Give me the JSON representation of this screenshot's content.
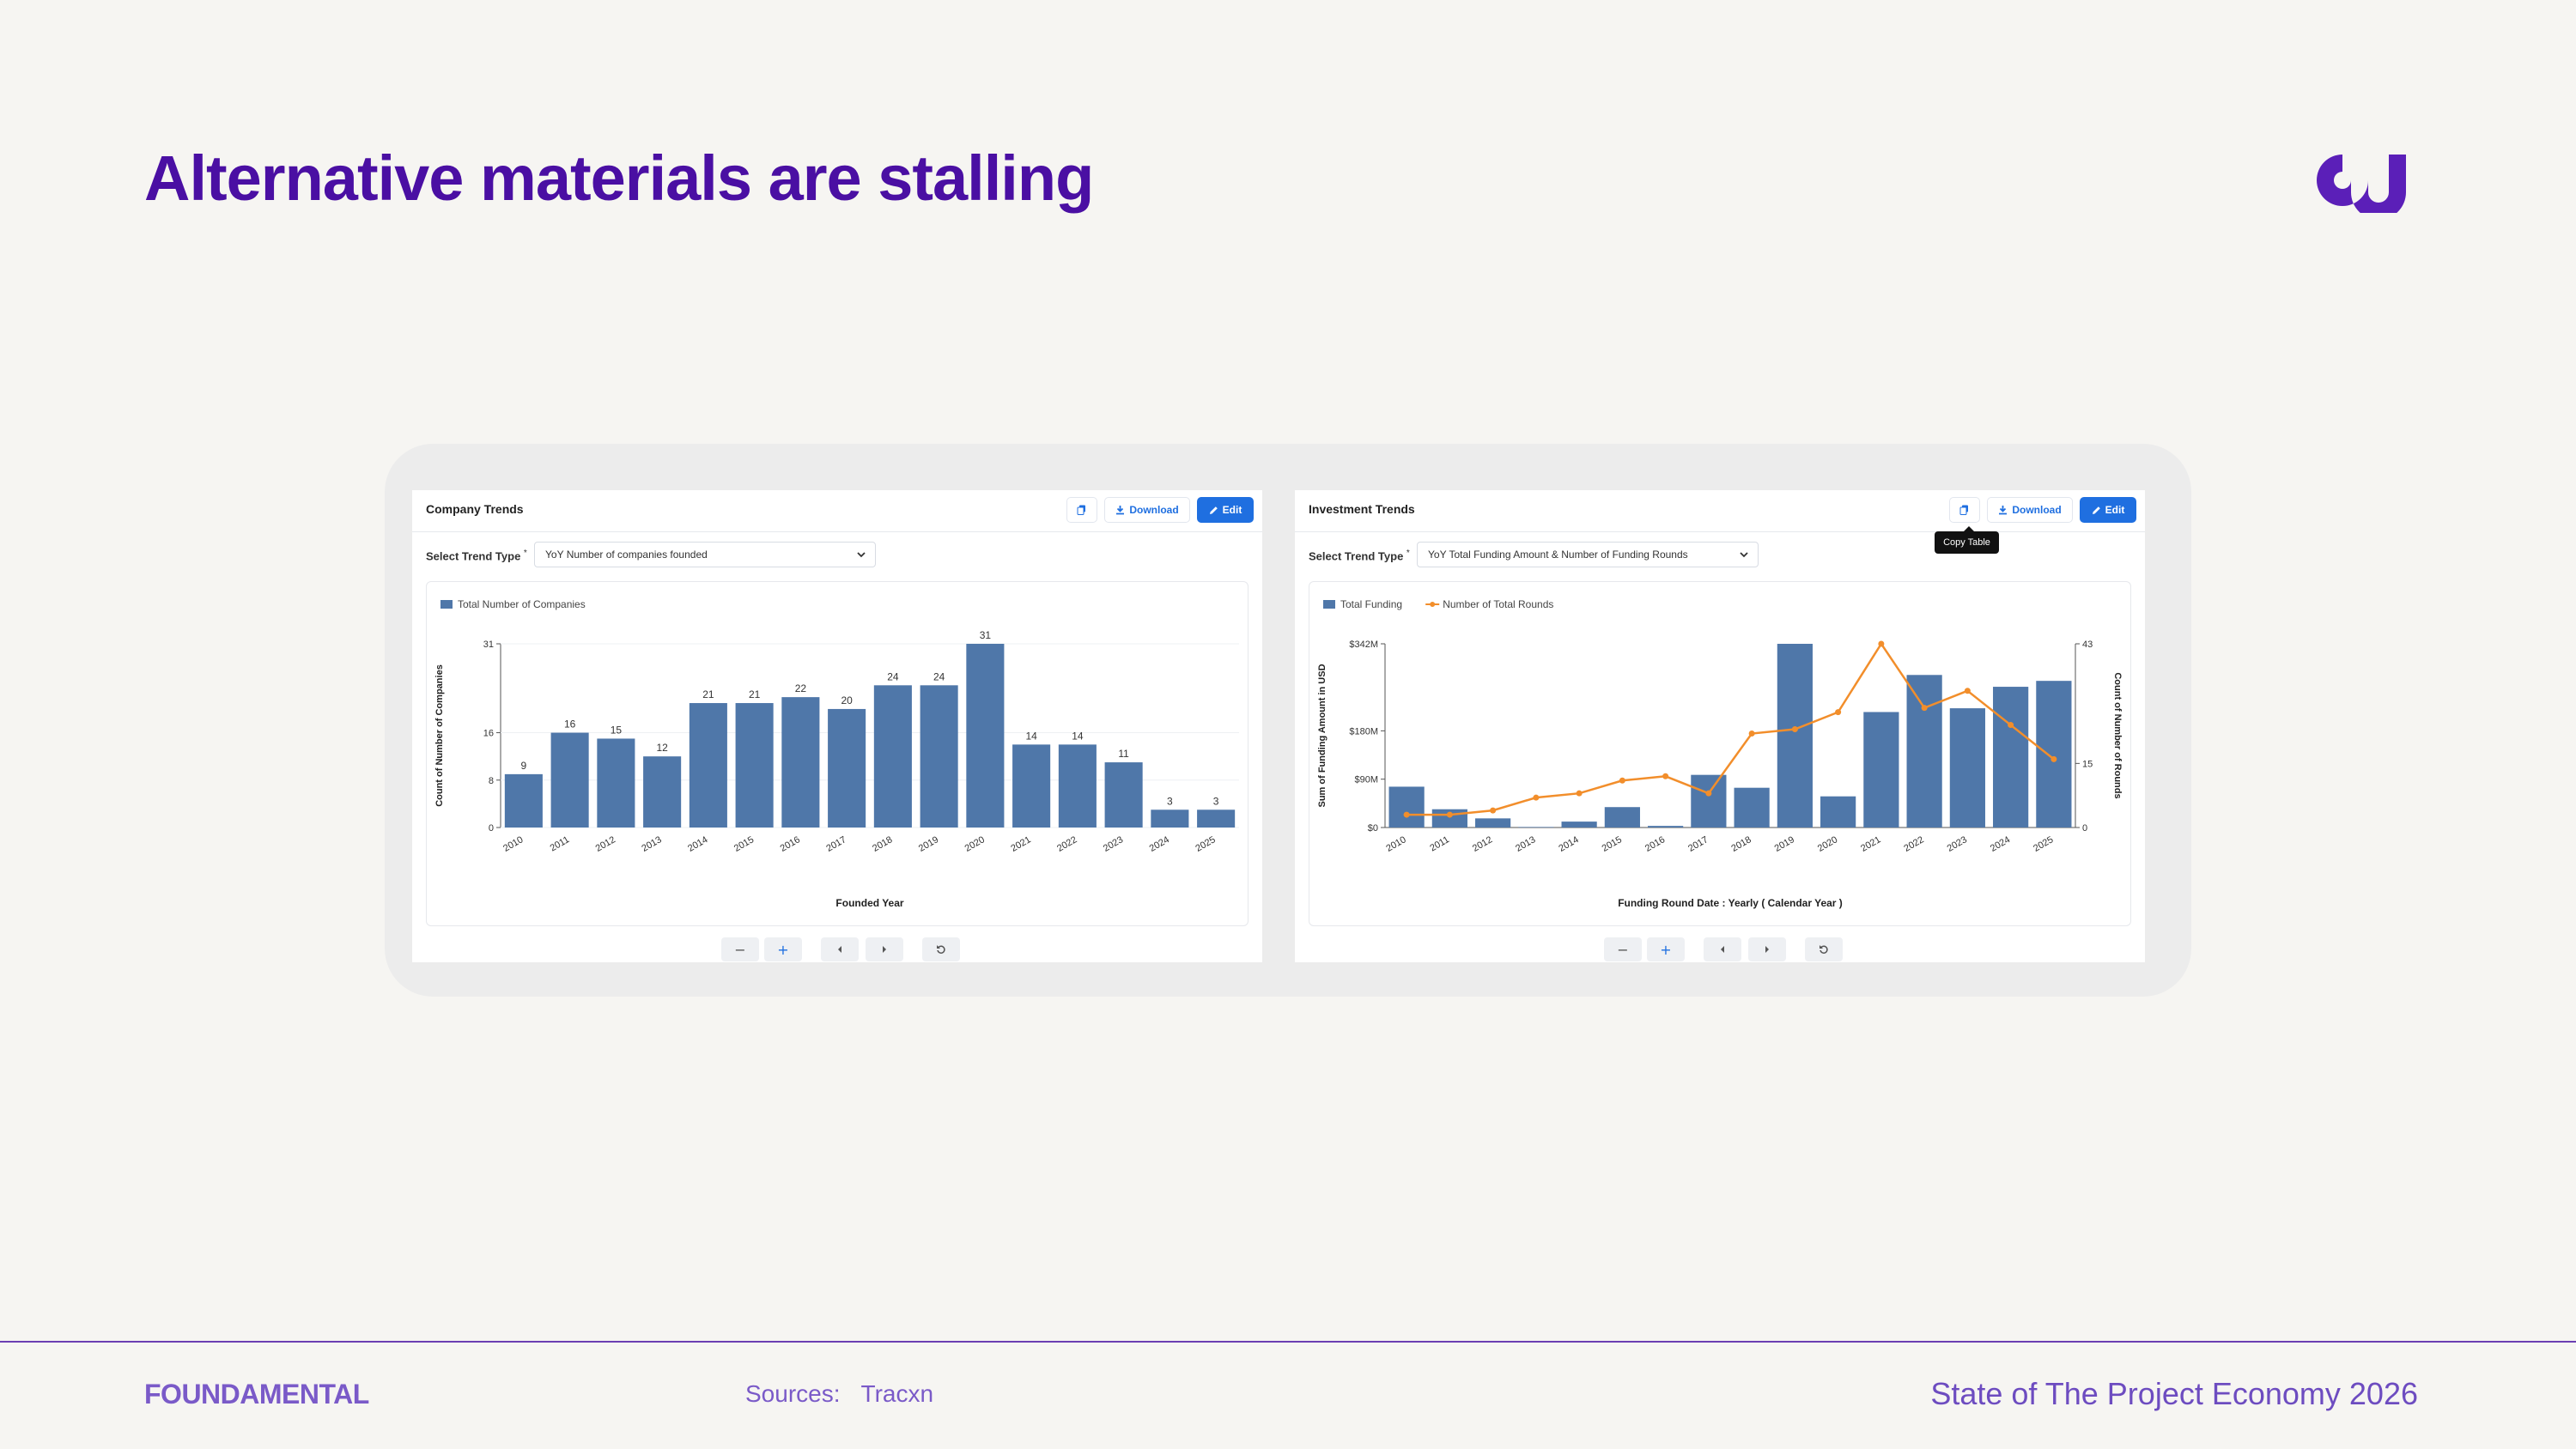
{
  "page": {
    "title": "Alternative materials are stalling",
    "logo_icon": "fundamental-logo-icon",
    "footer": {
      "brand": "FOUNDAMENTAL",
      "sources_label": "Sources:",
      "sources_value": "Tracxn",
      "report_title": "State of The Project Economy 2026"
    },
    "colors": {
      "title": "#4a0fa3",
      "accent": "#6b3fb3",
      "bar": "#4f77a9",
      "line": "#f28e2b",
      "primary": "#1f6fe0"
    }
  },
  "left_panel": {
    "title": "Company Trends",
    "buttons": {
      "copy_icon": "copy-icon",
      "download": "Download",
      "edit": "Edit"
    },
    "select_label": "Select Trend Type",
    "required_mark": "*",
    "select_value": "YoY Number of companies founded",
    "zoom": {
      "minus": "−",
      "plus": "+"
    }
  },
  "right_panel": {
    "title": "Investment Trends",
    "buttons": {
      "copy_icon": "copy-icon",
      "download": "Download",
      "edit": "Edit"
    },
    "tooltip": "Copy Table",
    "select_label": "Select Trend Type",
    "required_mark": "*",
    "select_value": "YoY Total Funding Amount & Number of Funding Rounds",
    "zoom": {
      "minus": "−",
      "plus": "+"
    }
  },
  "chart_data": [
    {
      "type": "bar",
      "legend": [
        "Total Number of Companies"
      ],
      "categories": [
        "2010",
        "2011",
        "2012",
        "2013",
        "2014",
        "2015",
        "2016",
        "2017",
        "2018",
        "2019",
        "2020",
        "2021",
        "2022",
        "2023",
        "2024",
        "2025"
      ],
      "series": [
        {
          "name": "Total Number of Companies",
          "values": [
            9,
            16,
            15,
            12,
            21,
            21,
            22,
            20,
            24,
            24,
            31,
            14,
            14,
            11,
            3,
            3
          ]
        }
      ],
      "xlabel": "Founded Year",
      "ylabel": "Count of Number of Companies",
      "yticks": [
        0,
        8,
        16,
        31
      ],
      "ylim": [
        0,
        31
      ],
      "data_labels": true
    },
    {
      "type": "bar",
      "legend": [
        "Total Funding",
        "Number of Total Rounds"
      ],
      "categories": [
        "2010",
        "2011",
        "2012",
        "2013",
        "2014",
        "2015",
        "2016",
        "2017",
        "2018",
        "2019",
        "2020",
        "2021",
        "2022",
        "2023",
        "2024",
        "2025"
      ],
      "series": [
        {
          "name": "Total Funding",
          "type": "bar",
          "axis": "left",
          "values": [
            76,
            34,
            17,
            1,
            11,
            38,
            3,
            98,
            74,
            342,
            58,
            215,
            284,
            222,
            262,
            273
          ]
        },
        {
          "name": "Number of Total Rounds",
          "type": "line",
          "axis": "right",
          "values": [
            3,
            3,
            4,
            7,
            8,
            11,
            12,
            8,
            22,
            23,
            27,
            43,
            28,
            32,
            24,
            16
          ]
        }
      ],
      "xlabel": "Funding Round Date : Yearly ( Calendar Year )",
      "ylabel": "Sum of Funding Amount in USD",
      "ylabel_right": "Count of Number of Rounds",
      "yticks_left": [
        "$0",
        "$90M",
        "$180M",
        "$342M"
      ],
      "yticks_left_values": [
        0,
        90,
        180,
        342
      ],
      "ylim_left": [
        0,
        342
      ],
      "yticks_right": [
        0,
        15,
        43
      ],
      "ylim_right": [
        0,
        43
      ]
    }
  ]
}
